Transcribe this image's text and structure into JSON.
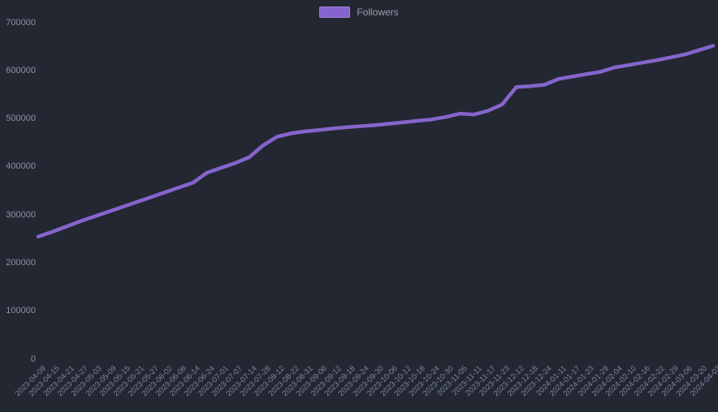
{
  "theme": {
    "background": "#232732",
    "line_color": "#8565cd",
    "legend_text_color": "#9aa1ad",
    "y_tick_color": "#8b92a2",
    "x_tick_color": "#7d86a0"
  },
  "chart_data": {
    "type": "line",
    "title": "",
    "xlabel": "",
    "ylabel": "",
    "grid": false,
    "legend_position": "top-center",
    "ylim": [
      0,
      700000
    ],
    "y_ticks": [
      0,
      100000,
      200000,
      300000,
      400000,
      500000,
      600000,
      700000
    ],
    "categories": [
      "2023-04-09",
      "2023-04-15",
      "2023-04-21",
      "2023-04-27",
      "2023-05-03",
      "2023-05-09",
      "2023-05-15",
      "2023-05-21",
      "2023-05-27",
      "2023-06-02",
      "2023-06-08",
      "2023-06-14",
      "2023-06-24",
      "2023-07-01",
      "2023-07-07",
      "2023-07-14",
      "2023-07-28",
      "2023-08-12",
      "2023-08-22",
      "2023-08-31",
      "2023-09-06",
      "2023-09-12",
      "2023-09-18",
      "2023-09-24",
      "2023-09-30",
      "2023-10-06",
      "2023-10-12",
      "2023-10-18",
      "2023-10-24",
      "2023-10-30",
      "2023-11-05",
      "2023-11-11",
      "2023-11-17",
      "2023-11-23",
      "2023-12-12",
      "2023-12-18",
      "2023-12-24",
      "2024-01-11",
      "2024-01-17",
      "2024-01-23",
      "2024-01-29",
      "2024-02-04",
      "2024-02-10",
      "2024-02-16",
      "2024-02-22",
      "2024-02-29",
      "2024-03-06",
      "2024-03-20",
      "2024-04-03"
    ],
    "series": [
      {
        "name": "Followers",
        "color": "#8565cd",
        "values": [
          255000,
          265000,
          276000,
          287000,
          297000,
          307000,
          317000,
          327000,
          337000,
          347000,
          357000,
          367000,
          388000,
          398000,
          408000,
          420000,
          445000,
          463000,
          470000,
          474000,
          477000,
          480000,
          483000,
          485000,
          487000,
          490000,
          493000,
          496000,
          499000,
          504000,
          511000,
          509000,
          517000,
          530000,
          566000,
          568000,
          571000,
          583000,
          588000,
          593000,
          598000,
          607000,
          612000,
          617000,
          622000,
          628000,
          634000,
          643000,
          652000
        ]
      }
    ]
  }
}
